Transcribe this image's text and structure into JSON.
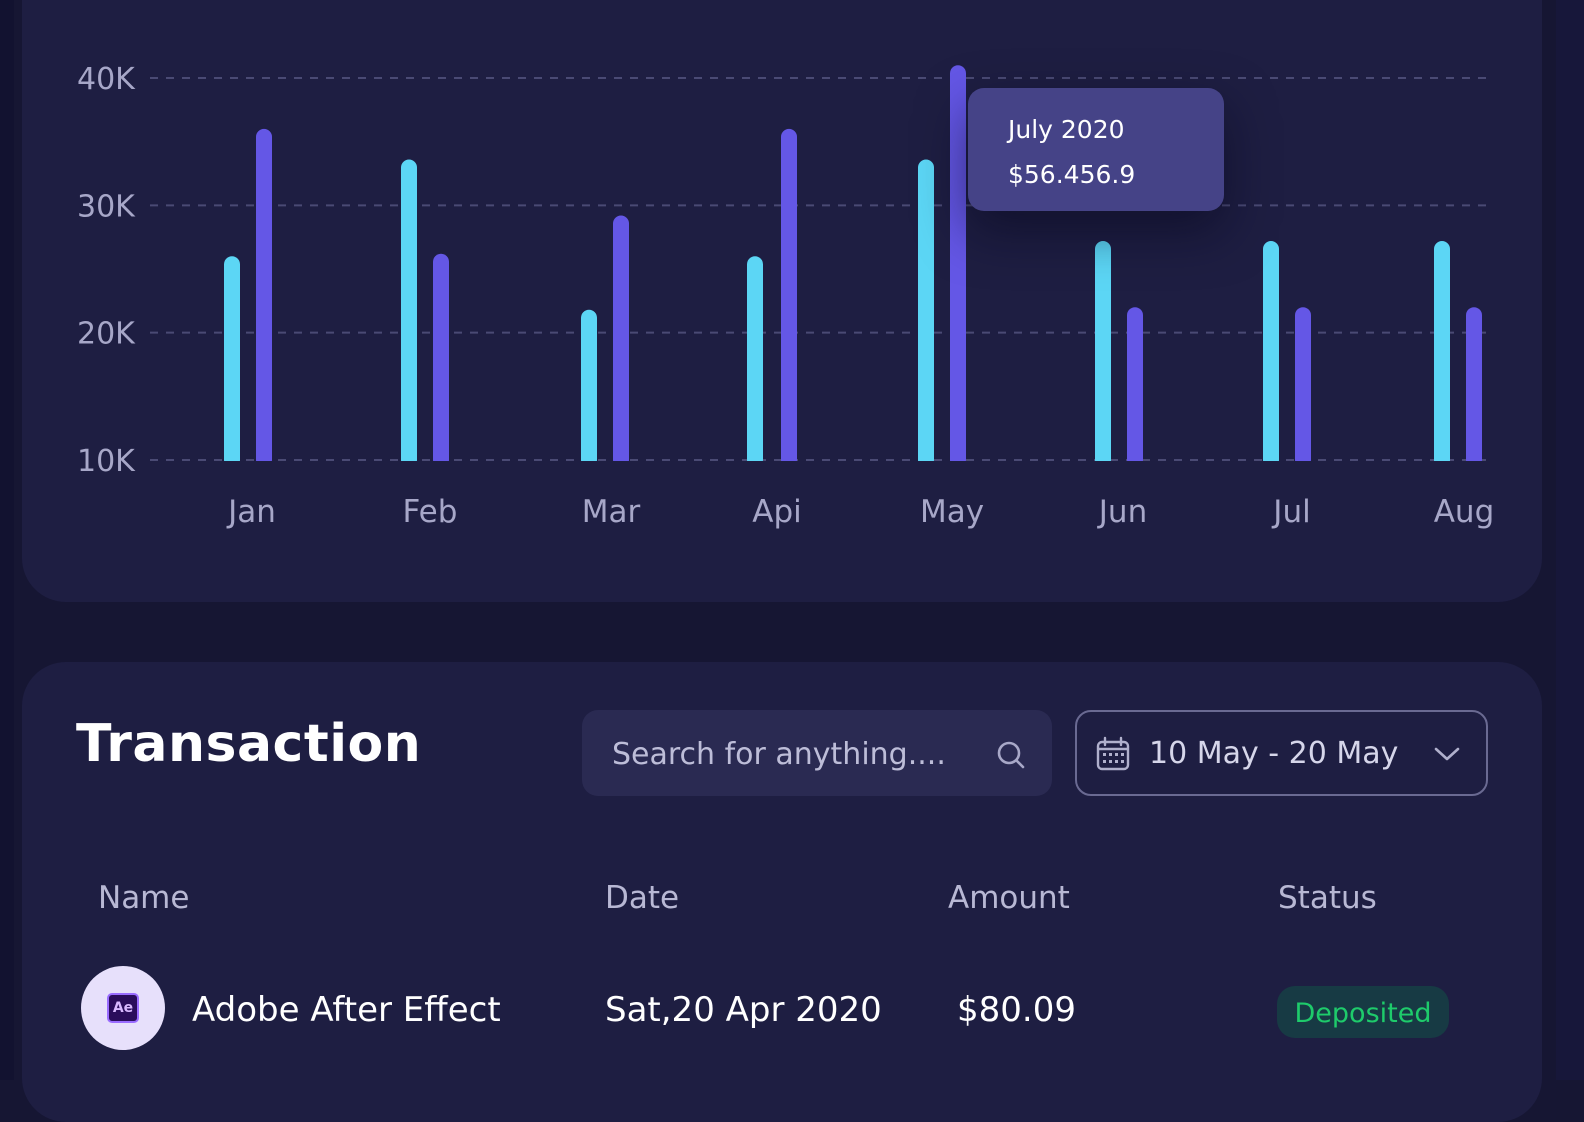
{
  "colors": {
    "background": "#161633",
    "card": "#1e1e42",
    "series_a": "#5cd6f5",
    "series_b": "#6457e6",
    "grid": "#4a4a74",
    "tooltip_bg": "#454387",
    "status_deposited": "#1ecb6b"
  },
  "chart_data": {
    "type": "bar",
    "categories": [
      "Jan",
      "Feb",
      "Mar",
      "Api",
      "May",
      "Jun",
      "Jul",
      "Aug"
    ],
    "series": [
      {
        "name": "",
        "color": "#5cd6f5",
        "values": [
          26,
          33.6,
          21.8,
          26,
          33.6,
          27.2,
          27.2,
          27.2
        ]
      },
      {
        "name": "",
        "color": "#6457e6",
        "values": [
          36,
          26.2,
          29.2,
          36,
          41,
          22,
          22,
          22
        ]
      }
    ],
    "y_ticks": [
      "40K",
      "30K",
      "20K",
      "10K"
    ],
    "y_tick_values": [
      40,
      30,
      20,
      10
    ],
    "ylim": [
      10,
      40
    ],
    "grid": true,
    "highlighted": {
      "category": "May",
      "series": 1
    },
    "tooltip": {
      "title": "July 2020",
      "value": "$56.456.9"
    }
  },
  "transactions": {
    "title": "Transaction",
    "search": {
      "placeholder": "Search for anything....",
      "icon": "search-icon"
    },
    "date_range": {
      "label": "10 May - 20 May",
      "icon": "calendar-icon",
      "dropdown_icon": "chevron-down-icon"
    },
    "columns": {
      "name": "Name",
      "date": "Date",
      "amount": "Amount",
      "status": "Status"
    },
    "rows": [
      {
        "logo_text": "Ae",
        "name": "Adobe After Effect",
        "date": "Sat,20 Apr 2020",
        "amount": "$80.09",
        "status": "Deposited"
      }
    ]
  }
}
